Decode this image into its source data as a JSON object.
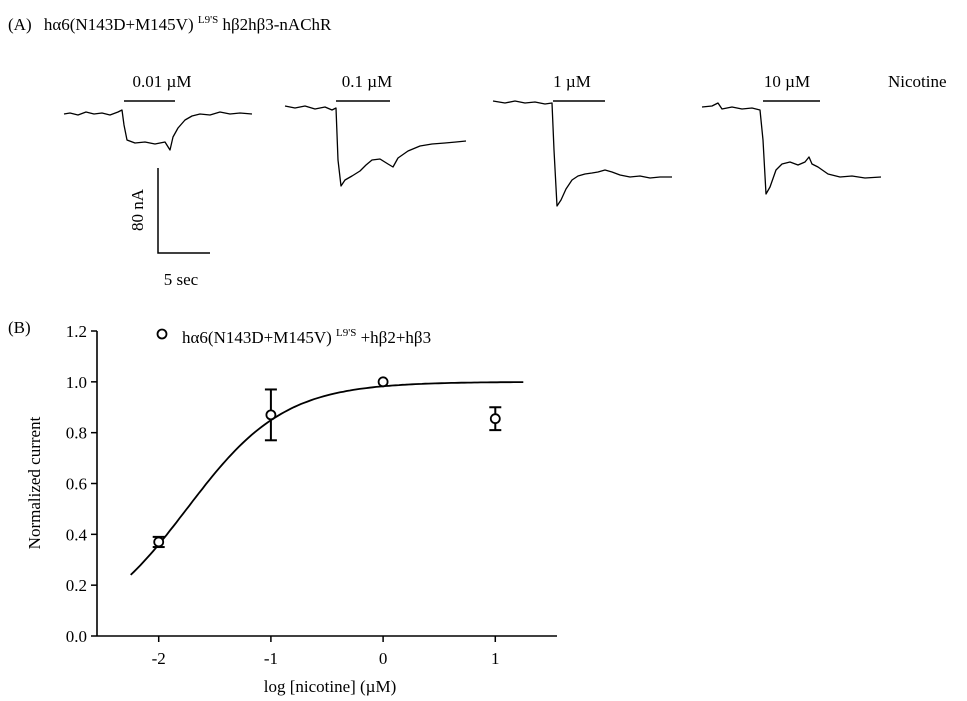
{
  "panel_a": {
    "label": "(A)",
    "title_main": "hα6(N143D+M145V)",
    "title_sup": "L9'S",
    "title_tail": " hβ2hβ3-nAChR",
    "drug_label": "Nicotine",
    "traces": [
      {
        "concentration": "0.01 µM"
      },
      {
        "concentration": "0.1 µM"
      },
      {
        "concentration": "1 µM"
      },
      {
        "concentration": "10 µM"
      }
    ],
    "scale_bar": {
      "current": "80 nA",
      "time": "5 sec"
    }
  },
  "chart_data": {
    "type": "scatter",
    "panel_label": "(B)",
    "legend": {
      "main": "hα6(N143D+M145V)",
      "sup": "L9'S",
      "tail": "+hβ2+hβ3"
    },
    "xlabel": "log [nicotine] (µM)",
    "ylabel": "Normalized current",
    "xlim": [
      -2.55,
      1.55
    ],
    "ylim": [
      0.0,
      1.2
    ],
    "x_ticks": [
      "-2",
      "-1",
      "0",
      "1"
    ],
    "y_ticks": [
      "0.0",
      "0.2",
      "0.4",
      "0.6",
      "0.8",
      "1.0",
      "1.2"
    ],
    "series": [
      {
        "x": [
          -2,
          -1,
          0,
          1
        ],
        "y": [
          0.37,
          0.87,
          1.0,
          0.855
        ],
        "error": [
          0.02,
          0.1,
          0.0,
          0.045
        ]
      }
    ],
    "fit_curve": {
      "bottom": 0.0,
      "top": 1.0,
      "log_ec50": -1.75,
      "hill": 1.0,
      "x_range": [
        -2.25,
        1.25
      ]
    }
  }
}
